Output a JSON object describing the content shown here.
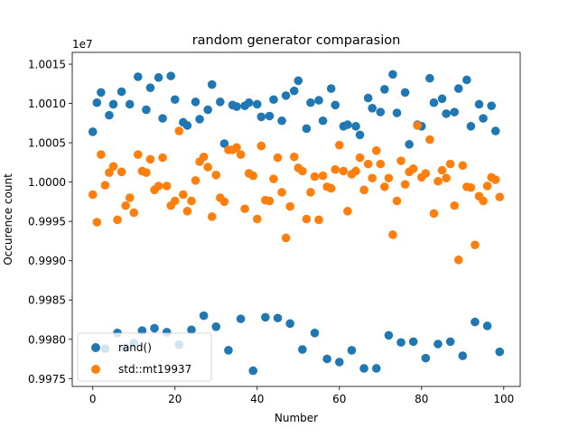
{
  "chart_data": {
    "type": "scatter",
    "title": "random generator comparasion",
    "xlabel": "Number",
    "ylabel": "Occurence count",
    "y_offset_label": "1e7",
    "xlim": [
      -5,
      104
    ],
    "ylim": [
      9997400,
      10001650
    ],
    "x_ticks": [
      0,
      20,
      40,
      60,
      80,
      100
    ],
    "x_tick_labels": [
      "0",
      "20",
      "40",
      "60",
      "80",
      "100"
    ],
    "y_ticks": [
      9997500,
      9998000,
      9998500,
      9999000,
      9999500,
      10000000,
      10000500,
      10001000,
      10001500
    ],
    "y_tick_labels": [
      "0.9975",
      "0.9980",
      "0.9985",
      "0.9990",
      "0.9995",
      "1.0000",
      "1.0005",
      "1.0010",
      "1.0015"
    ],
    "grid": false,
    "legend_position": "lower-left",
    "series": [
      {
        "name": "rand()",
        "color": "#1f77b4",
        "x": [
          0,
          1,
          2,
          3,
          4,
          5,
          6,
          7,
          8,
          9,
          10,
          11,
          12,
          13,
          14,
          15,
          16,
          17,
          18,
          19,
          20,
          21,
          22,
          23,
          24,
          25,
          26,
          27,
          28,
          29,
          30,
          31,
          32,
          33,
          34,
          35,
          36,
          37,
          38,
          39,
          40,
          41,
          42,
          43,
          44,
          45,
          46,
          47,
          48,
          49,
          50,
          51,
          52,
          53,
          54,
          55,
          56,
          57,
          58,
          59,
          60,
          61,
          62,
          63,
          64,
          65,
          66,
          67,
          68,
          69,
          70,
          71,
          72,
          73,
          74,
          75,
          76,
          77,
          78,
          79,
          80,
          81,
          82,
          83,
          84,
          85,
          86,
          87,
          88,
          89,
          90,
          91,
          92,
          93,
          94,
          95,
          96,
          97,
          98,
          99
        ],
        "y": [
          10000640,
          10001010,
          10001140,
          9997880,
          10000850,
          10000990,
          9998080,
          10001150,
          9997890,
          10000990,
          9997950,
          10001340,
          9998110,
          10000920,
          10001200,
          9998140,
          10001330,
          10000810,
          9998090,
          10001350,
          10001050,
          9997930,
          10000760,
          10000720,
          9998120,
          10001020,
          10000800,
          9998300,
          10000920,
          10001240,
          9998160,
          10001020,
          10000490,
          9997860,
          10000980,
          10000960,
          9998260,
          10000970,
          10001010,
          9997600,
          10000990,
          10000830,
          9998280,
          10000840,
          10001050,
          9998270,
          10000780,
          10001100,
          9998200,
          10001160,
          10001290,
          9997870,
          10000680,
          10001010,
          9998080,
          10001040,
          10000780,
          9997750,
          10001190,
          10000980,
          9997710,
          10000710,
          10000730,
          9997860,
          10000710,
          10000600,
          9997630,
          10001070,
          10000940,
          9997630,
          10000890,
          10001180,
          9998050,
          10001370,
          10000880,
          9997960,
          10001140,
          10000480,
          9997970,
          10000730,
          10000710,
          9997760,
          10001320,
          10001010,
          9997940,
          10001060,
          10000870,
          9997970,
          10000890,
          10001190,
          9997790,
          10001300,
          10000710,
          9998220,
          10000990,
          10000810,
          9998170,
          10000970,
          10000650,
          9997840
        ]
      },
      {
        "name": "std::mt19937",
        "color": "#ff7f0e",
        "x": [
          0,
          1,
          2,
          3,
          4,
          5,
          6,
          7,
          8,
          9,
          10,
          11,
          12,
          13,
          14,
          15,
          16,
          17,
          18,
          19,
          20,
          21,
          22,
          23,
          24,
          25,
          26,
          27,
          28,
          29,
          30,
          31,
          32,
          33,
          34,
          35,
          36,
          37,
          38,
          39,
          40,
          41,
          42,
          43,
          44,
          45,
          46,
          47,
          48,
          49,
          50,
          51,
          52,
          53,
          54,
          55,
          56,
          57,
          58,
          59,
          60,
          61,
          62,
          63,
          64,
          65,
          66,
          67,
          68,
          69,
          70,
          71,
          72,
          73,
          74,
          75,
          76,
          77,
          78,
          79,
          80,
          81,
          82,
          83,
          84,
          85,
          86,
          87,
          88,
          89,
          90,
          91,
          92,
          93,
          94,
          95,
          96,
          97,
          98,
          99
        ],
        "y": [
          9999840,
          9999490,
          10000350,
          9999960,
          10000120,
          10000200,
          9999520,
          10000130,
          9999700,
          9999800,
          9999610,
          10000350,
          10000140,
          10000120,
          10000290,
          9999900,
          9999950,
          10000310,
          9999950,
          9999700,
          9999760,
          10000650,
          9999840,
          9999630,
          9999760,
          10000020,
          10000260,
          10000320,
          10000190,
          9999560,
          10000090,
          9999800,
          9999750,
          10000410,
          10000410,
          10000440,
          10000350,
          9999660,
          10000110,
          10000080,
          9999530,
          10000460,
          9999770,
          9999760,
          10000040,
          10000310,
          9999870,
          9999290,
          9999690,
          10000320,
          10000180,
          10000140,
          9999530,
          9999870,
          10000070,
          9999520,
          10000080,
          9999940,
          9999920,
          10000160,
          10000470,
          10000140,
          9999630,
          10000100,
          10000140,
          10000310,
          9999900,
          10000230,
          10000050,
          10000400,
          10000230,
          9999940,
          10000050,
          9999330,
          9999760,
          10000270,
          9999970,
          10000130,
          10000170,
          10000720,
          10000060,
          10000110,
          10000540,
          9999600,
          10000010,
          10000150,
          10000050,
          10000230,
          9999700,
          9999010,
          10000210,
          9999940,
          9999930,
          9999200,
          9999820,
          9999760,
          9999950,
          10000060,
          10000030,
          9999810
        ]
      }
    ]
  }
}
